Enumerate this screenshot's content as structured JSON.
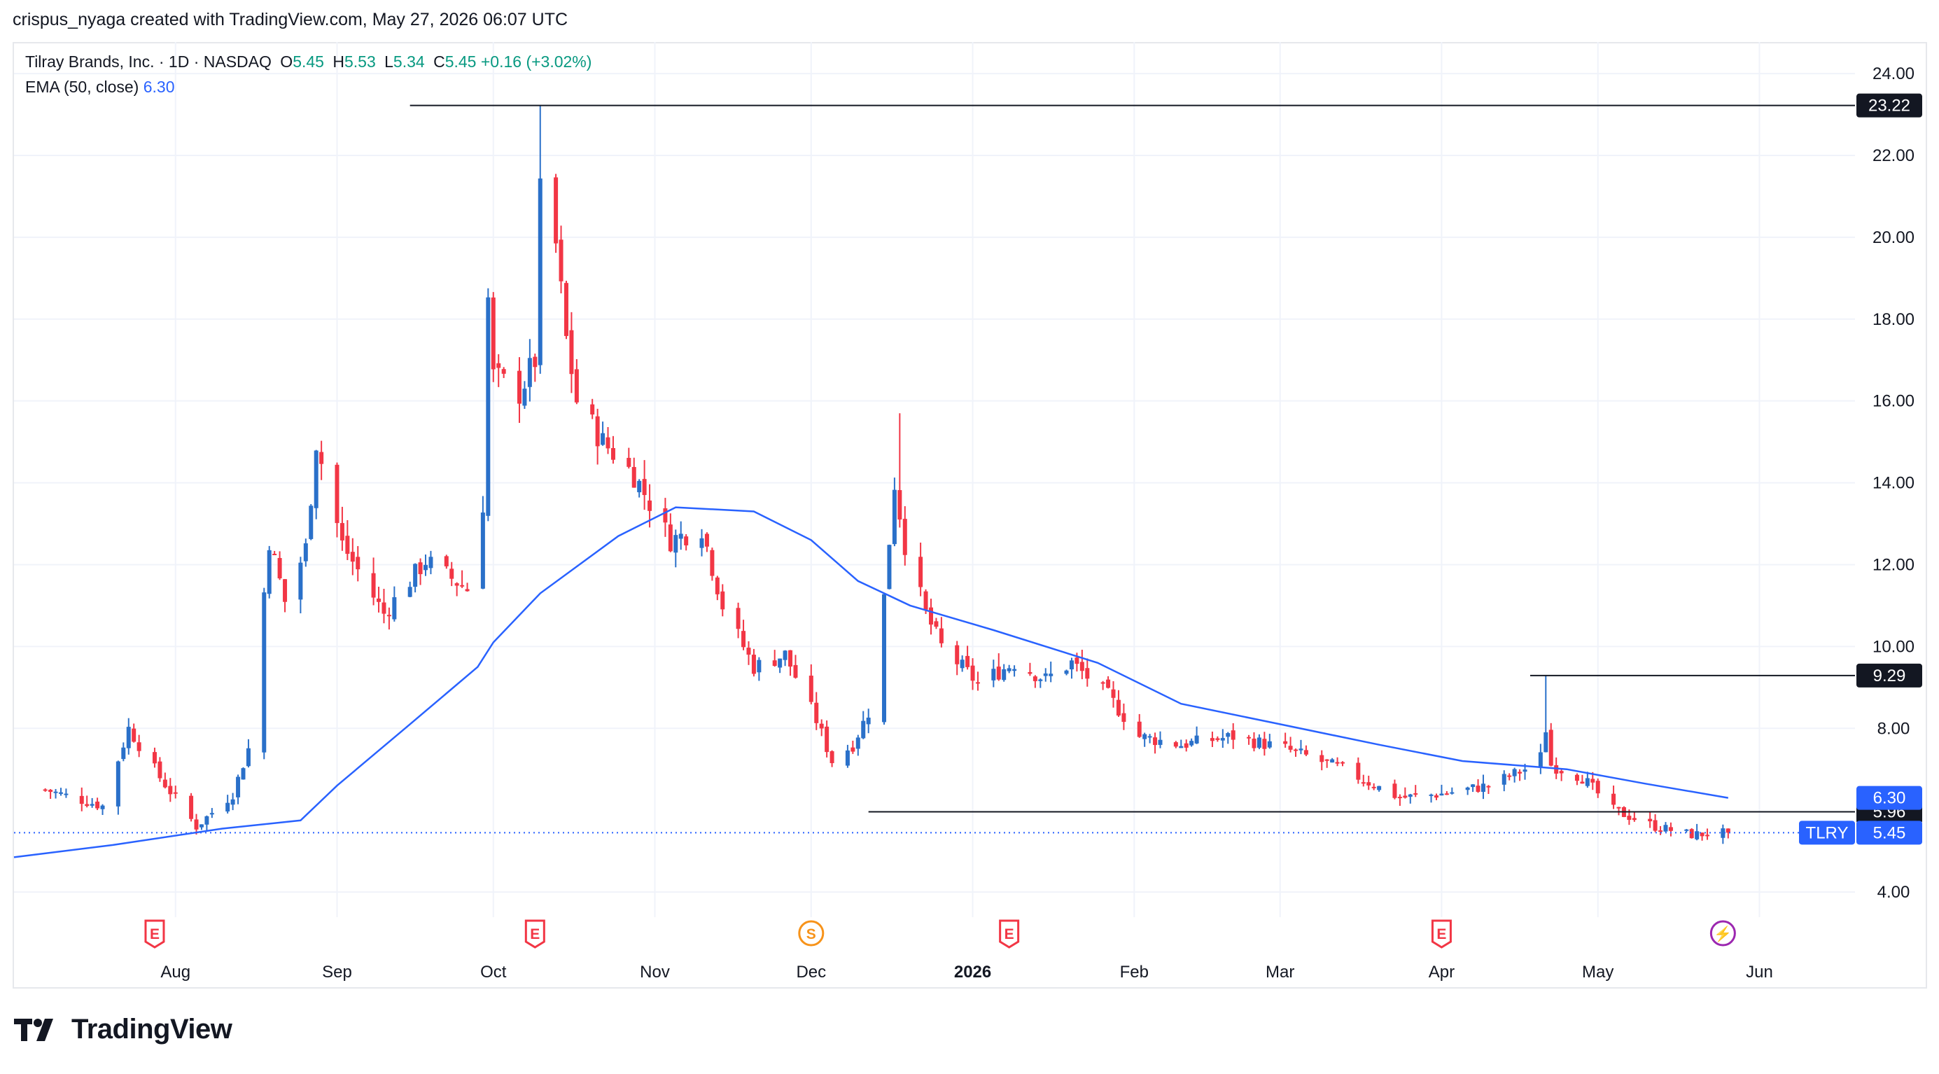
{
  "header": {
    "created_by": "crispus_nyaga created with TradingView.com, May 27, 2026 06:07 UTC"
  },
  "legend": {
    "symbol": "Tilray Brands, Inc. · 1D · NASDAQ",
    "open_label": "O",
    "open": "5.45",
    "high_label": "H",
    "high": "5.53",
    "low_label": "L",
    "low": "5.34",
    "close_label": "C",
    "close": "5.45",
    "change": "+0.16 (+3.02%)",
    "ema_label": "EMA (50, close)",
    "ema_value": "6.30"
  },
  "brand": {
    "name": "TradingView"
  },
  "colors": {
    "up": "#2a70c9",
    "down": "#f23645",
    "ema": "#2962ff",
    "legend_value": "#089981",
    "earnings": "#f23645",
    "dividend": "#f7931a",
    "split": "#9c27b0"
  },
  "chart_data": {
    "type": "candlestick",
    "symbol": "TLRY",
    "interval": "1D",
    "ylim": [
      3.3,
      24.6
    ],
    "y_ticks": [
      "4.00",
      "8.00",
      "10.00",
      "12.00",
      "14.00",
      "16.00",
      "18.00",
      "20.00",
      "22.00",
      "24.00"
    ],
    "x_ticks": [
      {
        "label": "Aug",
        "date": "2025-08-01"
      },
      {
        "label": "Sep",
        "date": "2025-09-01"
      },
      {
        "label": "Oct",
        "date": "2025-10-01"
      },
      {
        "label": "Nov",
        "date": "2025-11-01"
      },
      {
        "label": "Dec",
        "date": "2025-12-01"
      },
      {
        "label": "2026",
        "date": "2026-01-01",
        "bold": true
      },
      {
        "label": "Feb",
        "date": "2026-02-01"
      },
      {
        "label": "Mar",
        "date": "2026-03-01"
      },
      {
        "label": "Apr",
        "date": "2026-04-01"
      },
      {
        "label": "May",
        "date": "2026-05-01"
      },
      {
        "label": "Jun",
        "date": "2026-06-01"
      }
    ],
    "key_points": [
      {
        "date": "2025-07-07",
        "close": 6.5
      },
      {
        "date": "2025-07-18",
        "close": 6.1
      },
      {
        "date": "2025-07-23",
        "close": 8.0
      },
      {
        "date": "2025-07-29",
        "close": 6.8
      },
      {
        "date": "2025-08-05",
        "close": 5.6
      },
      {
        "date": "2025-08-12",
        "close": 6.4
      },
      {
        "date": "2025-08-15",
        "close": 7.5
      },
      {
        "date": "2025-08-19",
        "close": 12.6
      },
      {
        "date": "2025-08-22",
        "close": 11.1
      },
      {
        "date": "2025-08-26",
        "close": 12.4
      },
      {
        "date": "2025-08-28",
        "close": 15.0
      },
      {
        "date": "2025-09-02",
        "close": 12.5
      },
      {
        "date": "2025-09-10",
        "close": 10.8
      },
      {
        "date": "2025-09-18",
        "close": 12.1
      },
      {
        "date": "2025-09-26",
        "close": 11.4
      },
      {
        "date": "2025-09-29",
        "close": 13.5
      },
      {
        "date": "2025-09-30",
        "close": 18.5
      },
      {
        "date": "2025-10-01",
        "close": 16.6
      },
      {
        "date": "2025-10-06",
        "close": 16.2
      },
      {
        "date": "2025-10-09",
        "close": 17.0
      },
      {
        "date": "2025-10-10",
        "close": 21.0
      },
      {
        "date": "2025-10-13",
        "close": 19.8
      },
      {
        "date": "2025-10-15",
        "close": 17.5
      },
      {
        "date": "2025-10-17",
        "close": 16.0
      },
      {
        "date": "2025-10-22",
        "close": 15.0
      },
      {
        "date": "2025-10-28",
        "close": 14.2
      },
      {
        "date": "2025-11-04",
        "close": 12.6
      },
      {
        "date": "2025-11-10",
        "close": 12.9
      },
      {
        "date": "2025-11-14",
        "close": 11.0
      },
      {
        "date": "2025-11-20",
        "close": 9.5
      },
      {
        "date": "2025-11-26",
        "close": 9.8
      },
      {
        "date": "2025-12-02",
        "close": 8.2
      },
      {
        "date": "2025-12-05",
        "close": 7.2
      },
      {
        "date": "2025-12-09",
        "close": 7.6
      },
      {
        "date": "2025-12-12",
        "close": 8.4
      },
      {
        "date": "2025-12-15",
        "close": 11.2
      },
      {
        "date": "2025-12-17",
        "close": 14.0
      },
      {
        "date": "2025-12-19",
        "close": 12.5
      },
      {
        "date": "2025-12-23",
        "close": 10.8
      },
      {
        "date": "2025-12-26",
        "close": 10.0
      },
      {
        "date": "2026-01-02",
        "close": 9.1
      },
      {
        "date": "2026-01-09",
        "close": 9.6
      },
      {
        "date": "2026-01-15",
        "close": 9.2
      },
      {
        "date": "2026-01-20",
        "close": 9.6
      },
      {
        "date": "2026-01-27",
        "close": 8.8
      },
      {
        "date": "2026-02-02",
        "close": 7.8
      },
      {
        "date": "2026-02-10",
        "close": 7.6
      },
      {
        "date": "2026-02-20",
        "close": 7.8
      },
      {
        "date": "2026-03-02",
        "close": 7.5
      },
      {
        "date": "2026-03-13",
        "close": 7.0
      },
      {
        "date": "2026-03-24",
        "close": 6.3
      },
      {
        "date": "2026-04-01",
        "close": 6.4
      },
      {
        "date": "2026-04-10",
        "close": 6.6
      },
      {
        "date": "2026-04-17",
        "close": 7.0
      },
      {
        "date": "2026-04-20",
        "close": 7.3
      },
      {
        "date": "2026-04-21",
        "close": 8.0
      },
      {
        "date": "2026-04-22",
        "close": 7.1
      },
      {
        "date": "2026-04-28",
        "close": 6.8
      },
      {
        "date": "2026-05-04",
        "close": 6.0
      },
      {
        "date": "2026-05-12",
        "close": 5.6
      },
      {
        "date": "2026-05-19",
        "close": 5.4
      },
      {
        "date": "2026-05-26",
        "close": 5.45
      }
    ],
    "ema": {
      "name": "EMA (50, close)",
      "points": [
        {
          "date": "2025-07-01",
          "value": 4.85
        },
        {
          "date": "2025-07-20",
          "value": 5.15
        },
        {
          "date": "2025-08-10",
          "value": 5.55
        },
        {
          "date": "2025-08-25",
          "value": 5.75
        },
        {
          "date": "2025-09-01",
          "value": 6.6
        },
        {
          "date": "2025-09-15",
          "value": 8.1
        },
        {
          "date": "2025-09-28",
          "value": 9.5
        },
        {
          "date": "2025-10-01",
          "value": 10.1
        },
        {
          "date": "2025-10-10",
          "value": 11.3
        },
        {
          "date": "2025-10-25",
          "value": 12.7
        },
        {
          "date": "2025-11-05",
          "value": 13.4
        },
        {
          "date": "2025-11-20",
          "value": 13.3
        },
        {
          "date": "2025-12-01",
          "value": 12.6
        },
        {
          "date": "2025-12-10",
          "value": 11.6
        },
        {
          "date": "2025-12-20",
          "value": 11.0
        },
        {
          "date": "2026-01-05",
          "value": 10.4
        },
        {
          "date": "2026-01-25",
          "value": 9.6
        },
        {
          "date": "2026-02-10",
          "value": 8.6
        },
        {
          "date": "2026-03-01",
          "value": 8.1
        },
        {
          "date": "2026-03-20",
          "value": 7.6
        },
        {
          "date": "2026-04-05",
          "value": 7.2
        },
        {
          "date": "2026-04-25",
          "value": 7.0
        },
        {
          "date": "2026-05-10",
          "value": 6.65
        },
        {
          "date": "2026-05-26",
          "value": 6.3
        }
      ]
    },
    "horizontal_lines": [
      {
        "value": 23.22,
        "label": "23.22",
        "from": "2025-09-15"
      },
      {
        "value": 9.29,
        "label": "9.29",
        "from": "2026-04-18"
      },
      {
        "value": 5.96,
        "label": "5.96",
        "from": "2025-12-12"
      }
    ],
    "last_price": {
      "symbol_label": "TLRY",
      "value": 5.45,
      "label": "5.45"
    },
    "ema_last": {
      "value": 6.3,
      "label": "6.30"
    },
    "events": [
      {
        "date": "2025-07-28",
        "type": "earnings",
        "letter": "E"
      },
      {
        "date": "2025-10-09",
        "type": "earnings",
        "letter": "E"
      },
      {
        "date": "2025-12-01",
        "type": "dividend",
        "letter": "S"
      },
      {
        "date": "2026-01-08",
        "type": "earnings",
        "letter": "E"
      },
      {
        "date": "2026-04-01",
        "type": "earnings",
        "letter": "E"
      },
      {
        "date": "2026-05-25",
        "type": "split",
        "letter": "⚡"
      }
    ]
  }
}
